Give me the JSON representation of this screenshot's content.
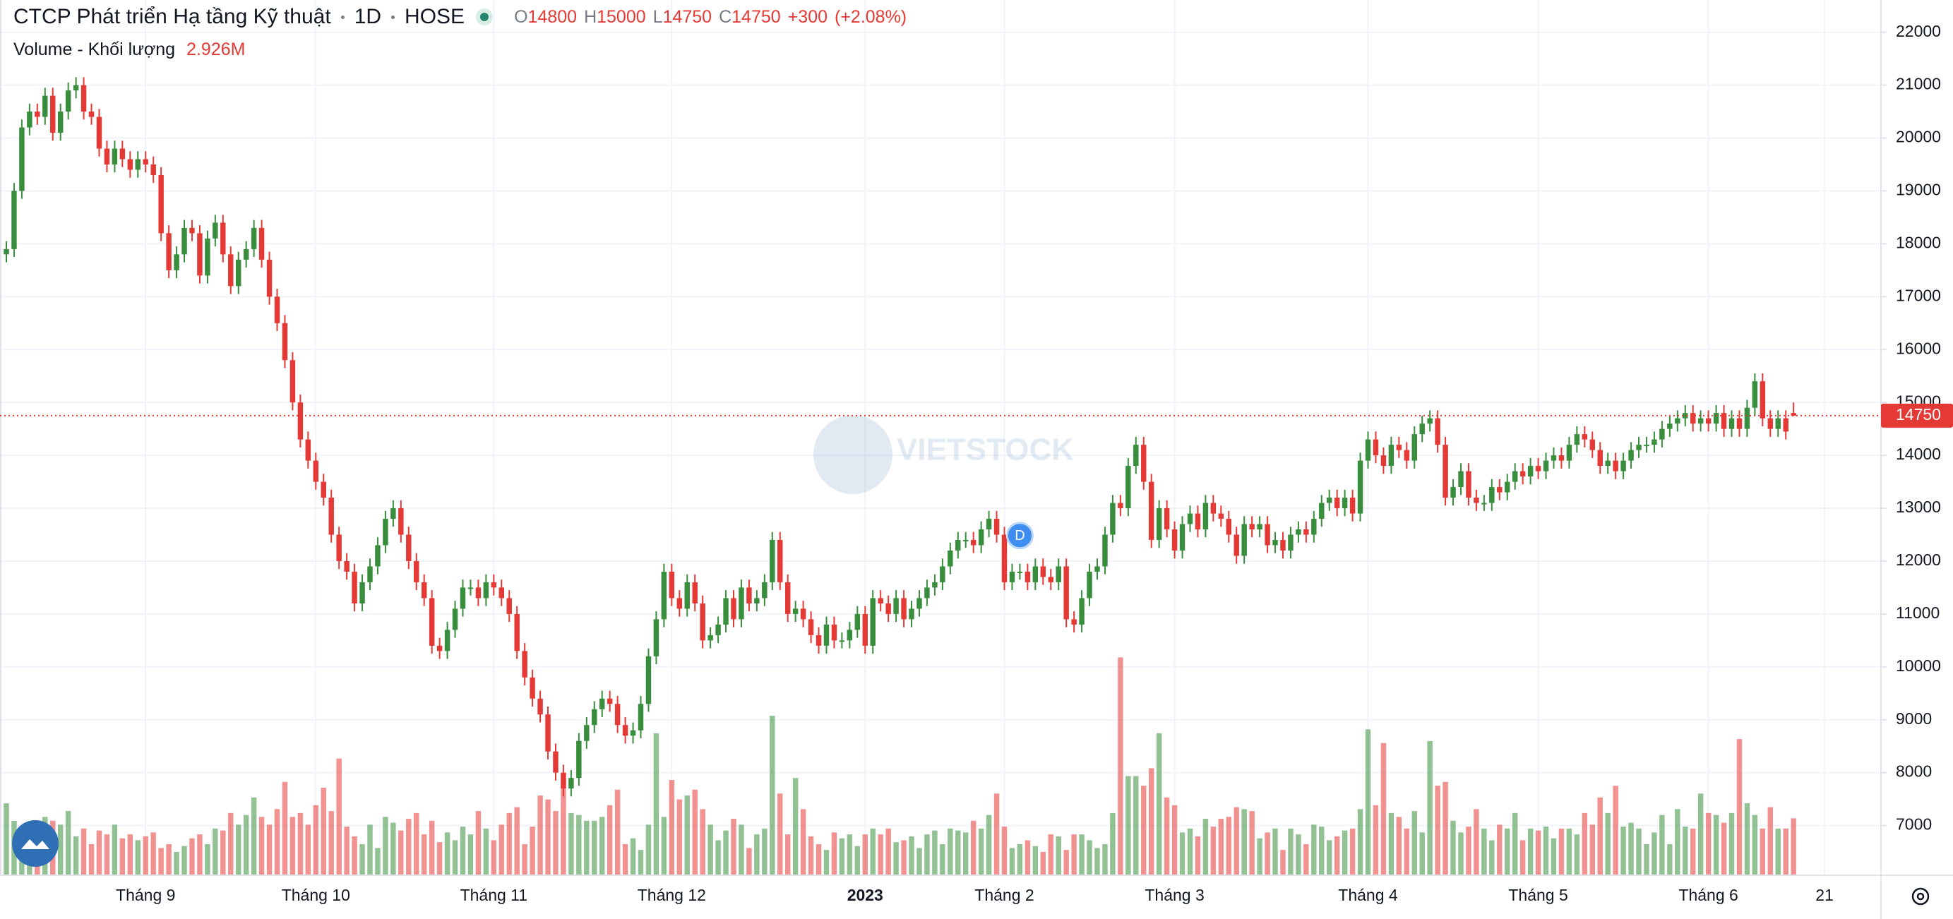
{
  "chart_data": {
    "type": "candlestick",
    "title": "CTCP Phát triển Hạ tầng Kỹ thuật",
    "interval": "1D",
    "exchange": "HOSE",
    "ohlc_legend": {
      "labels": [
        "O",
        "H",
        "L",
        "C"
      ],
      "open": 14800,
      "high": 15000,
      "low": 14750,
      "close": 14750,
      "change": {
        "value": 300,
        "label": "+300"
      },
      "change_pct": {
        "value": 2.08,
        "label": "(+2.08%)"
      }
    },
    "volume_legend": {
      "label": "Volume - Khối lượng",
      "value": 2.926,
      "value_label": "2.926M"
    },
    "watermark": "VIETSTOCK",
    "last_price": 14750,
    "up_color": "#388e3c",
    "down_color": "#e53935",
    "grid": true,
    "ylim": [
      6060,
      22610
    ],
    "yticks": [
      7000,
      8000,
      9000,
      10000,
      11000,
      12000,
      13000,
      14000,
      15000,
      16000,
      17000,
      18000,
      19000,
      20000,
      21000,
      22000
    ],
    "volume_lim": [
      0,
      45
    ],
    "events": [
      {
        "category_index": 131,
        "label": "D"
      }
    ],
    "categories": [
      null,
      null,
      null,
      null,
      null,
      null,
      null,
      null,
      null,
      null,
      null,
      null,
      null,
      null,
      null,
      null,
      null,
      null,
      "Tháng 9",
      null,
      null,
      null,
      null,
      null,
      null,
      null,
      null,
      null,
      null,
      null,
      null,
      null,
      null,
      null,
      null,
      null,
      null,
      null,
      null,
      null,
      "Tháng 10",
      null,
      null,
      null,
      null,
      null,
      null,
      null,
      null,
      null,
      null,
      null,
      null,
      null,
      null,
      null,
      null,
      null,
      null,
      null,
      null,
      null,
      null,
      "Tháng 11",
      null,
      null,
      null,
      null,
      null,
      null,
      null,
      null,
      null,
      null,
      null,
      null,
      null,
      null,
      null,
      null,
      null,
      null,
      null,
      null,
      null,
      null,
      "Tháng 12",
      null,
      null,
      null,
      null,
      null,
      null,
      null,
      null,
      null,
      null,
      null,
      null,
      null,
      null,
      null,
      null,
      null,
      null,
      null,
      null,
      null,
      null,
      null,
      null,
      "2023",
      null,
      null,
      null,
      null,
      null,
      null,
      null,
      null,
      null,
      null,
      null,
      null,
      null,
      null,
      null,
      null,
      null,
      "Tháng 2",
      null,
      null,
      null,
      null,
      null,
      null,
      null,
      null,
      null,
      null,
      null,
      null,
      null,
      null,
      null,
      null,
      null,
      null,
      null,
      null,
      null,
      "Tháng 3",
      null,
      null,
      null,
      null,
      null,
      null,
      null,
      null,
      null,
      null,
      null,
      null,
      null,
      null,
      null,
      null,
      null,
      null,
      null,
      null,
      null,
      null,
      null,
      null,
      "Tháng 4",
      null,
      null,
      null,
      null,
      null,
      null,
      null,
      null,
      null,
      null,
      null,
      null,
      null,
      null,
      null,
      null,
      null,
      null,
      null,
      null,
      null,
      "Tháng 5",
      null,
      null,
      null,
      null,
      null,
      null,
      null,
      null,
      null,
      null,
      null,
      null,
      null,
      null,
      null,
      null,
      null,
      null,
      null,
      null,
      null,
      "Tháng 6",
      null,
      null,
      null,
      null,
      null,
      null,
      null,
      null,
      null,
      null,
      null,
      null,
      null,
      null,
      "21"
    ],
    "open": [
      17800,
      17900,
      19000,
      20200,
      20500,
      20400,
      20800,
      20100,
      20500,
      20900,
      21000,
      20500,
      20400,
      19800,
      19500,
      19800,
      19600,
      19400,
      19600,
      19500,
      19300,
      18200,
      17500,
      17800,
      18300,
      18200,
      17400,
      18100,
      18400,
      17800,
      17200,
      17700,
      17900,
      18300,
      17700,
      17000,
      16500,
      15800,
      15000,
      14300,
      13900,
      13500,
      13200,
      12500,
      12000,
      11800,
      11200,
      11600,
      11900,
      12300,
      12800,
      13000,
      12500,
      12000,
      11600,
      11300,
      10400,
      10300,
      10700,
      11100,
      11500,
      11500,
      11300,
      11600,
      11500,
      11300,
      11000,
      10300,
      9800,
      9400,
      9100,
      8400,
      8000,
      7700,
      7900,
      8600,
      8900,
      9200,
      9400,
      9300,
      8900,
      8700,
      8800,
      9300,
      10200,
      10900,
      11800,
      11300,
      11100,
      11600,
      11200,
      10500,
      10600,
      10800,
      11300,
      10900,
      11500,
      11200,
      11300,
      11600,
      12400,
      11600,
      11000,
      11100,
      10900,
      10600,
      10400,
      10800,
      10500,
      10500,
      10700,
      11000,
      10400,
      11300,
      11200,
      11000,
      11300,
      10900,
      11100,
      11300,
      11500,
      11600,
      11900,
      12200,
      12400,
      12400,
      12300,
      12600,
      12800,
      12500,
      11600,
      11800,
      11800,
      11600,
      11900,
      11700,
      11600,
      11900,
      10900,
      10800,
      11300,
      11800,
      11900,
      12500,
      13100,
      13000,
      13800,
      14200,
      13500,
      12400,
      13000,
      12600,
      12200,
      12700,
      12900,
      12600,
      13100,
      12900,
      12800,
      12500,
      12100,
      12700,
      12600,
      12700,
      12300,
      12400,
      12200,
      12500,
      12600,
      12500,
      12800,
      13100,
      13200,
      13000,
      13200,
      12900,
      13900,
      14300,
      14000,
      13800,
      14200,
      14100,
      13900,
      14400,
      14600,
      14700,
      14200,
      13200,
      13400,
      13700,
      13200,
      13100,
      13100,
      13400,
      13300,
      13500,
      13700,
      13600,
      13800,
      13700,
      13900,
      14000,
      13900,
      14200,
      14400,
      14300,
      14100,
      13800,
      13900,
      13700,
      13900,
      14100,
      14200,
      14200,
      14300,
      14500,
      14600,
      14700,
      14800,
      14600,
      14700,
      14600,
      14800,
      14500,
      14700,
      14500,
      14900,
      15400,
      14700,
      14500,
      14700,
      14800,
      null,
      null,
      null,
      null
    ],
    "high": [
      18050,
      19150,
      20350,
      20650,
      20650,
      20950,
      20950,
      20650,
      21050,
      21150,
      21150,
      20650,
      20550,
      19950,
      19950,
      19950,
      19750,
      19750,
      19750,
      19650,
      19450,
      18350,
      17950,
      18450,
      18450,
      18350,
      18250,
      18550,
      18550,
      17950,
      17850,
      18050,
      18450,
      18450,
      17850,
      17150,
      16650,
      15950,
      15150,
      14450,
      14050,
      13650,
      13350,
      12650,
      12150,
      11950,
      11750,
      12050,
      12450,
      12950,
      13150,
      13150,
      12650,
      12150,
      11750,
      11450,
      10550,
      10850,
      11250,
      11650,
      11650,
      11650,
      11750,
      11750,
      11650,
      11450,
      11150,
      10450,
      9950,
      9550,
      9250,
      8550,
      8150,
      8050,
      8750,
      9050,
      9350,
      9550,
      9550,
      9450,
      9050,
      8950,
      9450,
      10350,
      11050,
      11950,
      11950,
      11450,
      11750,
      11750,
      11350,
      10750,
      10950,
      11450,
      11450,
      11650,
      11650,
      11450,
      11750,
      12550,
      12550,
      11750,
      11250,
      11250,
      11050,
      10750,
      10950,
      10950,
      10650,
      10850,
      11150,
      11150,
      11450,
      11450,
      11350,
      11450,
      11450,
      11250,
      11450,
      11650,
      11750,
      12050,
      12350,
      12550,
      12550,
      12550,
      12750,
      12950,
      12950,
      12650,
      11950,
      11950,
      11950,
      12050,
      12050,
      11850,
      12050,
      12050,
      11050,
      11450,
      11950,
      12050,
      12650,
      13250,
      13250,
      13950,
      14350,
      14350,
      13650,
      13150,
      13150,
      12750,
      12850,
      13050,
      13050,
      13250,
      13250,
      13050,
      12950,
      12650,
      12850,
      12850,
      12850,
      12850,
      12550,
      12550,
      12650,
      12750,
      12750,
      12950,
      13250,
      13350,
      13350,
      13350,
      13350,
      14050,
      14450,
      14450,
      14150,
      14350,
      14350,
      14250,
      14550,
      14750,
      14850,
      14850,
      14350,
      13550,
      13850,
      13850,
      13350,
      13250,
      13550,
      13550,
      13650,
      13850,
      13850,
      13950,
      13950,
      14050,
      14150,
      14150,
      14350,
      14550,
      14550,
      14450,
      14250,
      14050,
      14050,
      14050,
      14250,
      14350,
      14350,
      14450,
      14650,
      14750,
      14850,
      14950,
      14950,
      14850,
      14850,
      14950,
      14950,
      14850,
      14850,
      15050,
      15550,
      15550,
      14850,
      14850,
      14850,
      15000,
      null,
      null,
      null,
      null
    ],
    "low": [
      17650,
      17750,
      18850,
      20050,
      20250,
      20250,
      19950,
      19950,
      20350,
      20750,
      20350,
      20250,
      19650,
      19350,
      19350,
      19450,
      19250,
      19250,
      19350,
      19150,
      18050,
      17350,
      17350,
      17650,
      18050,
      17250,
      17250,
      17950,
      17650,
      17050,
      17050,
      17550,
      17750,
      17550,
      16850,
      16350,
      15650,
      14850,
      14150,
      13750,
      13350,
      13050,
      12350,
      11850,
      11650,
      11050,
      11050,
      11450,
      11750,
      12150,
      12650,
      12350,
      11850,
      11450,
      11150,
      10250,
      10150,
      10150,
      10550,
      10950,
      11350,
      11150,
      11150,
      11350,
      11150,
      10850,
      10150,
      9650,
      9250,
      8950,
      8250,
      7850,
      7550,
      7550,
      7750,
      8450,
      8750,
      9050,
      9150,
      8750,
      8550,
      8550,
      8650,
      9150,
      10050,
      10750,
      11150,
      10950,
      10950,
      11050,
      10350,
      10350,
      10450,
      10650,
      10750,
      10750,
      11050,
      11050,
      11150,
      11450,
      11450,
      10850,
      10850,
      10750,
      10450,
      10250,
      10250,
      10350,
      10350,
      10350,
      10550,
      10250,
      10250,
      11050,
      10850,
      10850,
      10750,
      10750,
      10950,
      11150,
      11350,
      11450,
      11750,
      12050,
      12250,
      12150,
      12150,
      12450,
      12350,
      11450,
      11450,
      11650,
      11450,
      11450,
      11550,
      11450,
      11450,
      10750,
      10650,
      10650,
      11150,
      11650,
      11750,
      12350,
      12850,
      12850,
      13650,
      13350,
      12250,
      12250,
      12450,
      12050,
      12050,
      12550,
      12450,
      12450,
      12750,
      12650,
      12350,
      11950,
      11950,
      12450,
      12450,
      12150,
      12150,
      12050,
      12050,
      12350,
      12350,
      12350,
      12650,
      12950,
      12850,
      12850,
      12750,
      12750,
      13750,
      13850,
      13650,
      13650,
      13950,
      13750,
      13750,
      14250,
      14450,
      14050,
      13050,
      13050,
      13250,
      13050,
      12950,
      12950,
      12950,
      13150,
      13150,
      13350,
      13450,
      13450,
      13550,
      13550,
      13750,
      13750,
      13750,
      14050,
      14150,
      13950,
      13650,
      13650,
      13550,
      13550,
      13750,
      13950,
      14050,
      14050,
      14150,
      14350,
      14450,
      14550,
      14450,
      14450,
      14450,
      14450,
      14350,
      14350,
      14350,
      14350,
      14750,
      14550,
      14350,
      14350,
      14300,
      14750,
      null,
      null,
      null,
      null
    ],
    "close": [
      17900,
      19000,
      20200,
      20500,
      20400,
      20800,
      20100,
      20500,
      20900,
      21000,
      20500,
      20400,
      19800,
      19500,
      19800,
      19600,
      19400,
      19600,
      19500,
      19300,
      18200,
      17500,
      17800,
      18300,
      18200,
      17400,
      18100,
      18400,
      17800,
      17200,
      17700,
      17900,
      18300,
      17700,
      17000,
      16500,
      15800,
      15000,
      14300,
      13900,
      13500,
      13200,
      12500,
      12000,
      11800,
      11200,
      11600,
      11900,
      12300,
      12800,
      13000,
      12500,
      12000,
      11600,
      11300,
      10400,
      10300,
      10700,
      11100,
      11500,
      11500,
      11300,
      11600,
      11500,
      11300,
      11000,
      10300,
      9800,
      9400,
      9100,
      8400,
      8000,
      7700,
      7900,
      8600,
      8900,
      9200,
      9400,
      9300,
      8900,
      8700,
      8800,
      9300,
      10200,
      10900,
      11800,
      11300,
      11100,
      11600,
      11200,
      10500,
      10600,
      10800,
      11300,
      10900,
      11500,
      11200,
      11300,
      11600,
      12400,
      11600,
      11000,
      11100,
      10900,
      10600,
      10400,
      10800,
      10500,
      10500,
      10700,
      11000,
      10400,
      11300,
      11200,
      11000,
      11300,
      10900,
      11100,
      11300,
      11500,
      11600,
      11900,
      12200,
      12400,
      12400,
      12300,
      12600,
      12800,
      12500,
      11600,
      11800,
      11800,
      11600,
      11900,
      11700,
      11600,
      11900,
      10900,
      10800,
      11300,
      11800,
      11900,
      12500,
      13100,
      13000,
      13800,
      14200,
      13500,
      12400,
      13000,
      12600,
      12200,
      12700,
      12900,
      12600,
      13100,
      12900,
      12800,
      12500,
      12100,
      12700,
      12600,
      12700,
      12300,
      12400,
      12200,
      12500,
      12600,
      12500,
      12800,
      13100,
      13200,
      13000,
      13200,
      12900,
      13900,
      14300,
      14000,
      13800,
      14200,
      14100,
      13900,
      14400,
      14600,
      14700,
      14200,
      13200,
      13400,
      13700,
      13200,
      13100,
      13100,
      13400,
      13300,
      13500,
      13700,
      13600,
      13800,
      13700,
      13900,
      14000,
      13900,
      14200,
      14400,
      14300,
      14100,
      13800,
      13900,
      13700,
      13900,
      14100,
      14200,
      14200,
      14300,
      14500,
      14600,
      14700,
      14800,
      14600,
      14700,
      14600,
      14800,
      14500,
      14700,
      14500,
      14900,
      15400,
      14700,
      14500,
      14700,
      14450,
      14750,
      null,
      null,
      null,
      null
    ],
    "volume": [
      3.7,
      2.8,
      1.8,
      2.5,
      2.2,
      3.0,
      2.8,
      2.6,
      3.3,
      2.0,
      2.4,
      1.6,
      2.3,
      2.1,
      2.6,
      1.9,
      2.1,
      1.8,
      2.0,
      2.2,
      1.4,
      1.6,
      1.2,
      1.5,
      1.9,
      2.1,
      1.6,
      2.4,
      2.3,
      3.2,
      2.6,
      3.1,
      4.0,
      3.0,
      2.6,
      3.4,
      4.8,
      3.0,
      3.2,
      2.6,
      3.6,
      4.5,
      3.3,
      6.0,
      2.5,
      2.0,
      1.6,
      2.6,
      1.4,
      3.0,
      2.7,
      2.3,
      2.9,
      3.2,
      2.1,
      2.8,
      1.7,
      2.2,
      1.8,
      2.5,
      2.1,
      3.3,
      2.4,
      1.8,
      2.6,
      3.2,
      3.5,
      1.6,
      2.5,
      4.1,
      3.9,
      3.3,
      4.8,
      3.2,
      3.1,
      2.8,
      2.8,
      3.0,
      3.6,
      4.4,
      1.6,
      1.9,
      1.3,
      2.6,
      7.3,
      3.0,
      4.9,
      3.9,
      4.1,
      4.4,
      3.4,
      2.6,
      1.8,
      2.3,
      2.9,
      2.6,
      1.4,
      2.1,
      2.4,
      8.2,
      4.2,
      2.1,
      5.0,
      3.4,
      2.0,
      1.6,
      1.3,
      2.2,
      1.9,
      2.1,
      1.5,
      2.1,
      2.4,
      2.1,
      2.4,
      1.7,
      1.8,
      2.0,
      1.4,
      2.1,
      2.3,
      1.6,
      2.4,
      2.3,
      2.2,
      2.8,
      2.4,
      3.1,
      4.2,
      2.5,
      1.4,
      1.6,
      1.8,
      1.5,
      1.2,
      2.1,
      2.0,
      1.3,
      2.1,
      2.1,
      1.8,
      1.4,
      1.6,
      3.2,
      11.2,
      5.1,
      5.1,
      4.6,
      5.5,
      7.3,
      4.0,
      3.6,
      2.2,
      2.4,
      2.0,
      2.9,
      2.5,
      2.9,
      3.0,
      3.5,
      3.4,
      3.3,
      1.9,
      2.2,
      2.4,
      1.3,
      2.4,
      2.1,
      1.6,
      2.6,
      2.5,
      1.8,
      2.0,
      2.3,
      2.4,
      3.4,
      7.5,
      3.6,
      6.8,
      3.2,
      3.0,
      2.4,
      3.3,
      2.2,
      6.9,
      4.6,
      4.8,
      2.8,
      2.2,
      2.5,
      3.4,
      2.4,
      1.8,
      2.6,
      2.4,
      3.2,
      1.8,
      2.4,
      2.3,
      2.5,
      1.9,
      2.4,
      2.4,
      2.1,
      3.2,
      2.6,
      4.0,
      3.2,
      4.6,
      2.5,
      2.7,
      2.4,
      1.6,
      2.2,
      3.1,
      1.6,
      3.4,
      2.5,
      2.4,
      4.2,
      3.2,
      3.1,
      2.7,
      3.2,
      7.0,
      3.7,
      3.1,
      2.4,
      3.5,
      2.4,
      2.4,
      2.926,
      null,
      null,
      null,
      null
    ]
  }
}
